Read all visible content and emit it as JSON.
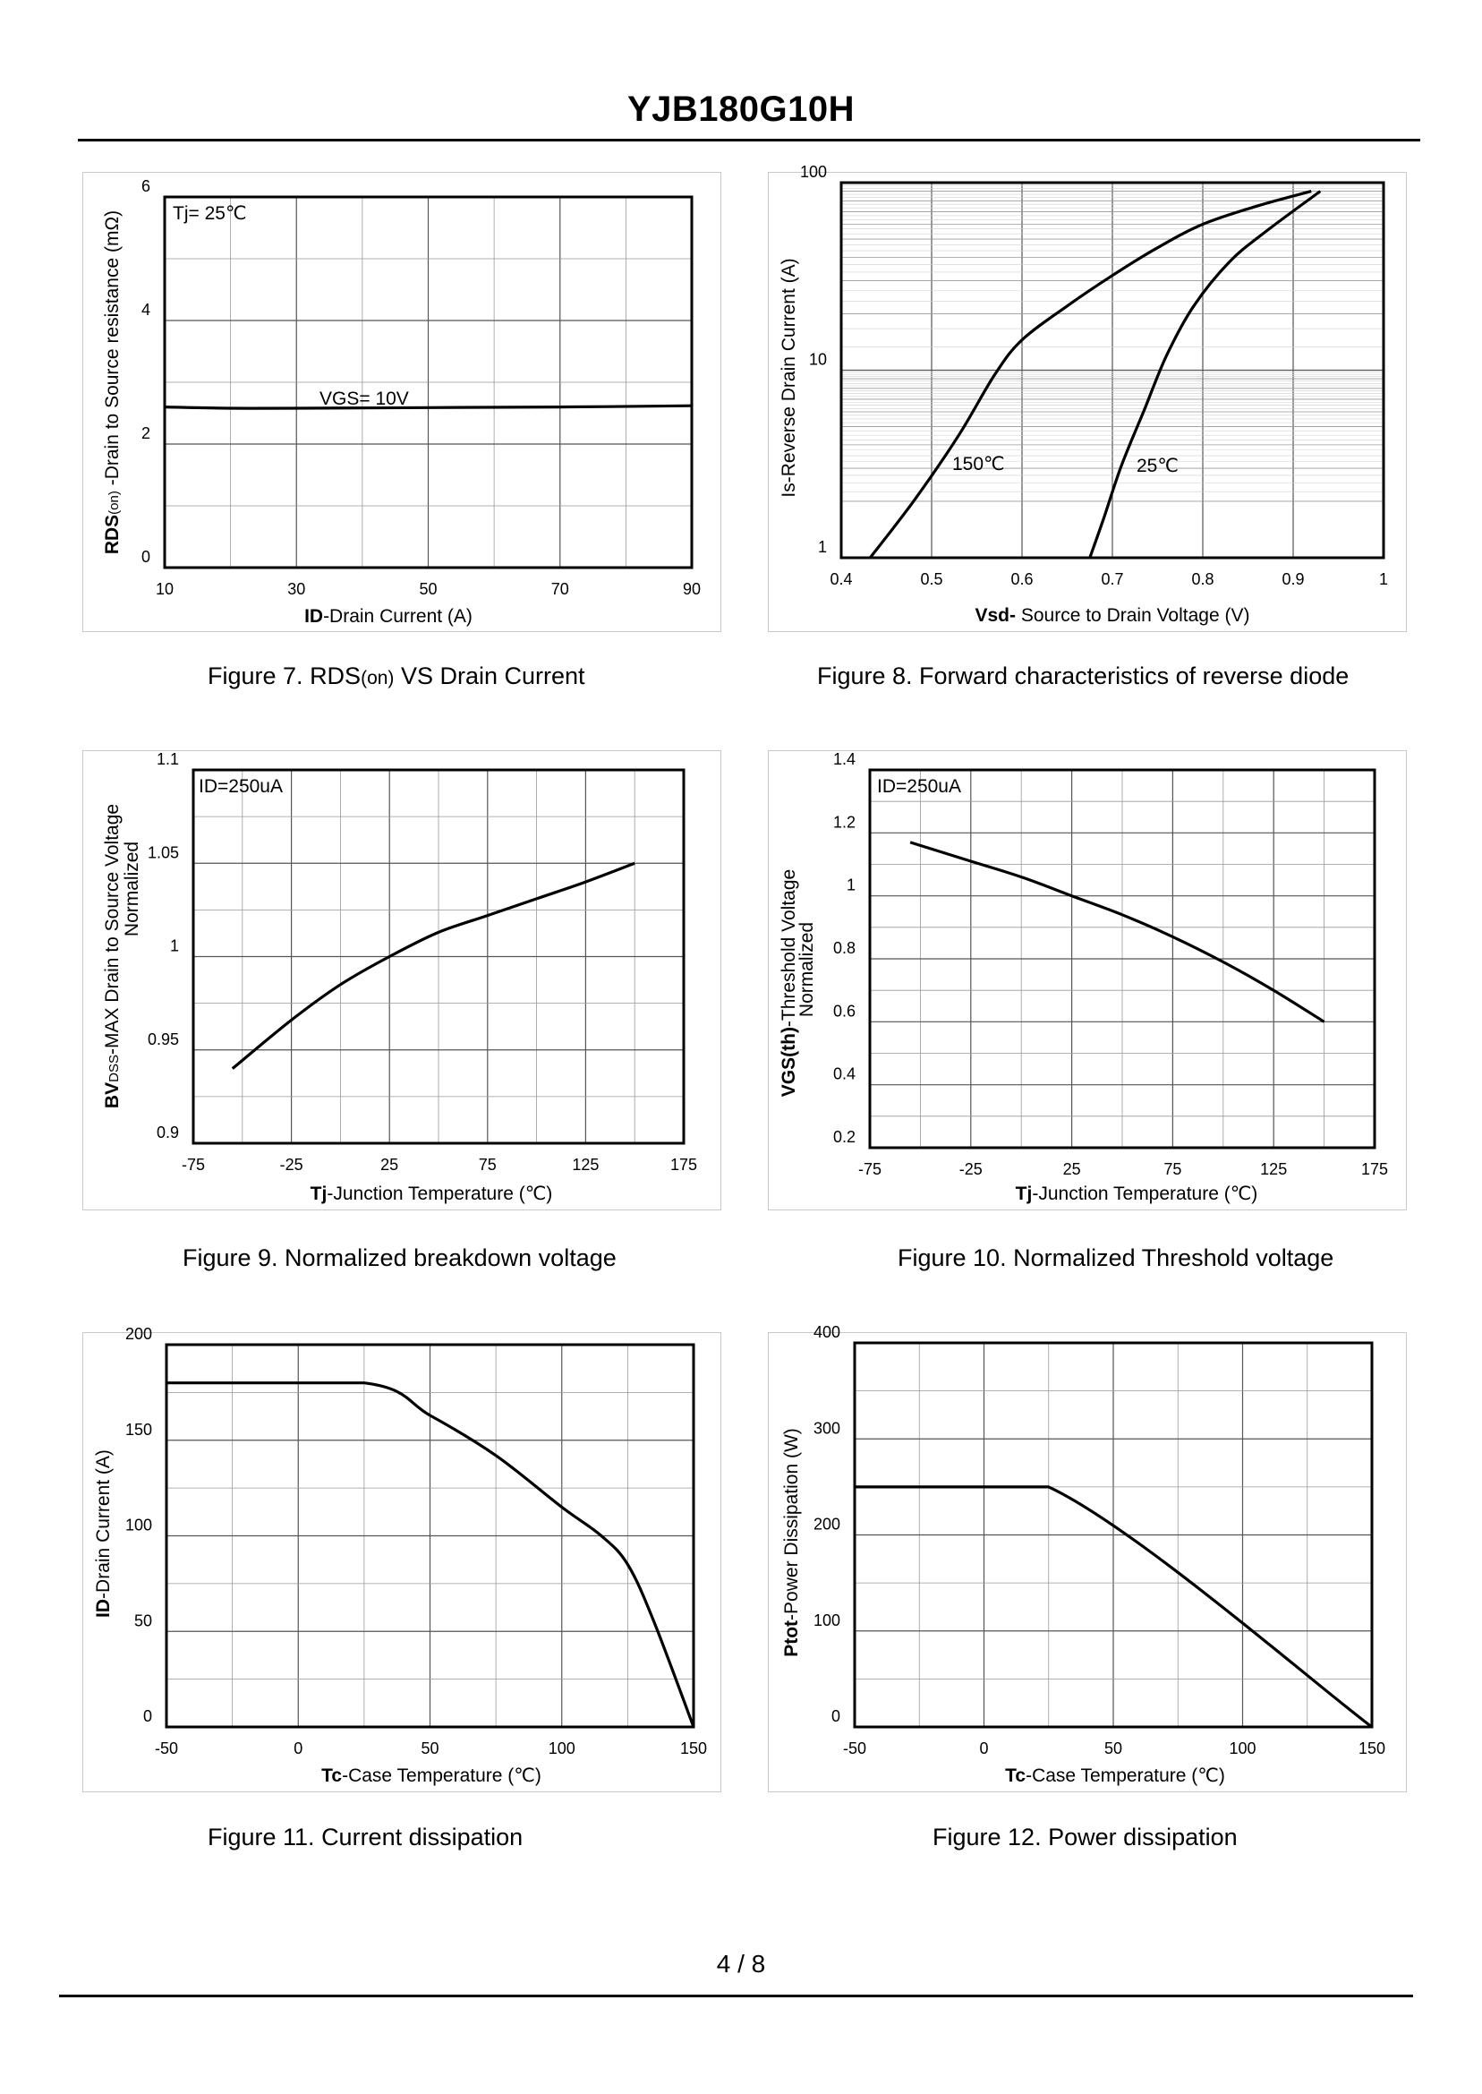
{
  "document": {
    "part_number": "YJB180G10H",
    "page_number": "4 / 8"
  },
  "chart_data": [
    {
      "id": "fig7",
      "type": "line",
      "caption": {
        "prefix": "Figure 7.  ",
        "rds": "RDS",
        "rds_sub": "(on)",
        "suffix": " VS Drain Current"
      },
      "ylabel": {
        "rds": "RDS",
        "rds_sub": "(on)",
        "rest": " -Drain to Source resistance (mΩ)"
      },
      "xlabel": {
        "bold": "ID",
        "rest": "-Drain Current (A)"
      },
      "x_ticks": [
        "10",
        "30",
        "50",
        "70",
        "90"
      ],
      "y_ticks": [
        "0",
        "2",
        "4",
        "6"
      ],
      "xlim": [
        10,
        90
      ],
      "ylim": [
        0,
        6
      ],
      "annotations": [
        "Tj= 25℃",
        "VGS= 10V"
      ],
      "series": [
        {
          "name": "VGS= 10V",
          "x": [
            10,
            20,
            30,
            50,
            70,
            90
          ],
          "y": [
            2.6,
            2.58,
            2.58,
            2.59,
            2.6,
            2.62
          ]
        }
      ]
    },
    {
      "id": "fig8",
      "type": "line",
      "caption": "Figure 8.  Forward characteristics of reverse diode",
      "ylabel": "Is-Reverse  Drain Current (A)",
      "xlabel": {
        "bold": "Vsd-",
        "rest": " Source to Drain Voltage (V)"
      },
      "x_ticks": [
        "0.4",
        "0.5",
        "0.6",
        "0.7",
        "0.8",
        "0.9",
        "1"
      ],
      "y_ticks": [
        "1",
        "10",
        "100"
      ],
      "xlim": [
        0.4,
        1.0
      ],
      "ylim": [
        1,
        100
      ],
      "yscale": "log",
      "annotations": [
        "150℃",
        "25℃"
      ],
      "series": [
        {
          "name": "150℃",
          "x": [
            0.432,
            0.48,
            0.53,
            0.57,
            0.6,
            0.65,
            0.7,
            0.75,
            0.8,
            0.86,
            0.92
          ],
          "y": [
            1,
            2,
            4.5,
            9.5,
            14.5,
            22,
            32,
            45,
            60,
            75,
            90
          ]
        },
        {
          "name": "25℃",
          "x": [
            0.675,
            0.69,
            0.71,
            0.735,
            0.76,
            0.79,
            0.83,
            0.87,
            0.93
          ],
          "y": [
            1,
            1.6,
            3.1,
            6.1,
            12,
            22,
            38,
            55,
            90
          ]
        }
      ]
    },
    {
      "id": "fig9",
      "type": "line",
      "caption": "Figure 9.  Normalized breakdown voltage",
      "ylabel": {
        "bv": "BV",
        "bv_sub": "DSS",
        "rest": "-MAX Drain to Source Voltage",
        "line2": "Normalized"
      },
      "xlabel": {
        "bold": "Tj",
        "rest": "-Junction  Temperature (℃)"
      },
      "x_ticks": [
        "-75",
        "-25",
        "25",
        "75",
        "125",
        "175"
      ],
      "y_ticks": [
        "0.9",
        "0.95",
        "1",
        "1.05",
        "1.1"
      ],
      "xlim": [
        -75,
        175
      ],
      "ylim": [
        0.9,
        1.1
      ],
      "annotations": [
        "ID=250uA"
      ],
      "series": [
        {
          "name": "ID=250uA",
          "x": [
            -55,
            -25,
            0,
            25,
            50,
            75,
            100,
            125,
            150
          ],
          "y": [
            0.94,
            0.966,
            0.985,
            1.0,
            1.013,
            1.022,
            1.031,
            1.04,
            1.05
          ]
        }
      ]
    },
    {
      "id": "fig10",
      "type": "line",
      "caption": "Figure 10.  Normalized Threshold voltage",
      "ylabel": {
        "bold": "VGS(th)",
        "rest": "-Threshold  Voltage",
        "line2": "Normalized"
      },
      "xlabel": {
        "bold": "Tj",
        "rest": "-Junction  Temperature (℃)"
      },
      "x_ticks": [
        "-75",
        "-25",
        "25",
        "75",
        "125",
        "175"
      ],
      "y_ticks": [
        "0.2",
        "0.4",
        "0.6",
        "0.8",
        "1",
        "1.2",
        "1.4"
      ],
      "xlim": [
        -75,
        175
      ],
      "ylim": [
        0.2,
        1.4
      ],
      "annotations": [
        "ID=250uA"
      ],
      "series": [
        {
          "name": "ID=250uA",
          "x": [
            -55,
            -25,
            0,
            25,
            50,
            75,
            100,
            125,
            150
          ],
          "y": [
            1.17,
            1.11,
            1.06,
            1.0,
            0.94,
            0.87,
            0.79,
            0.7,
            0.6
          ]
        }
      ]
    },
    {
      "id": "fig11",
      "type": "line",
      "caption": "Figure 11.  Current dissipation",
      "ylabel": {
        "bold": "ID",
        "rest": "-Drain Current (A)"
      },
      "xlabel": {
        "bold": "Tc",
        "rest": "-Case Temperature (℃)"
      },
      "x_ticks": [
        "-50",
        "0",
        "50",
        "100",
        "150"
      ],
      "y_ticks": [
        "0",
        "50",
        "100",
        "150",
        "200"
      ],
      "xlim": [
        -50,
        150
      ],
      "ylim": [
        0,
        200
      ],
      "series": [
        {
          "name": "ID",
          "x": [
            -50,
            25,
            50,
            75,
            100,
            115,
            125,
            135,
            150
          ],
          "y": [
            180,
            180,
            163,
            142,
            115,
            100,
            85,
            55,
            0
          ]
        }
      ]
    },
    {
      "id": "fig12",
      "type": "line",
      "caption": "Figure 12.  Power dissipation",
      "ylabel": {
        "bold": "Ptot",
        "rest": "-Power Dissipation (W)"
      },
      "xlabel": {
        "bold": "Tc",
        "rest": "-Case Temperature (℃)"
      },
      "x_ticks": [
        "-50",
        "0",
        "50",
        "100",
        "150"
      ],
      "y_ticks": [
        "0",
        "100",
        "200",
        "300",
        "400"
      ],
      "xlim": [
        -50,
        150
      ],
      "ylim": [
        0,
        400
      ],
      "series": [
        {
          "name": "Ptot",
          "x": [
            -50,
            25,
            150
          ],
          "y": [
            250,
            250,
            0
          ]
        }
      ]
    }
  ]
}
